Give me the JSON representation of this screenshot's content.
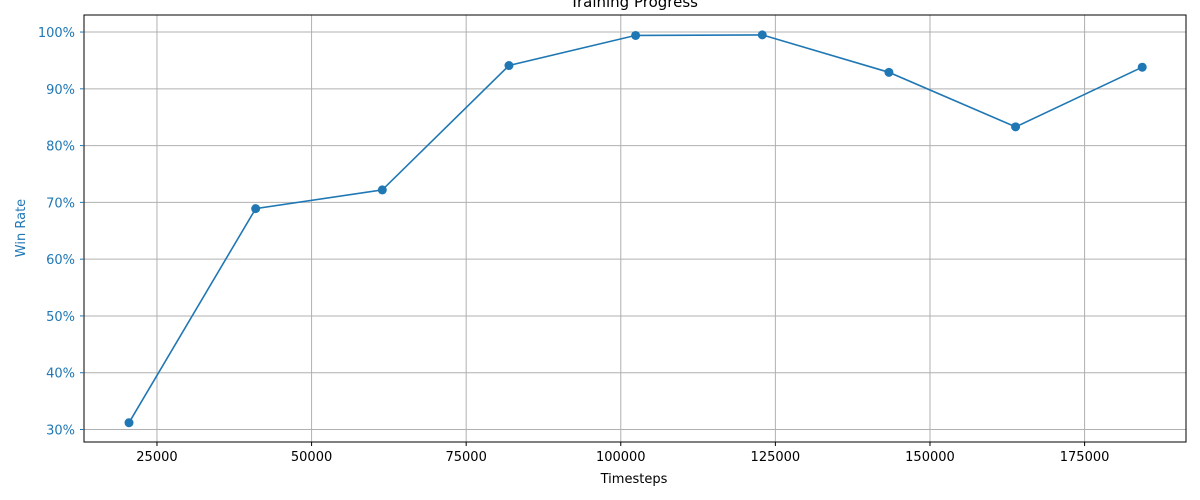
{
  "chart_data": {
    "type": "line",
    "title": "Training Progress",
    "xlabel": "Timesteps",
    "ylabel": "Win Rate",
    "xlim": [
      13200,
      191400
    ],
    "ylim": [
      0.278,
      1.03
    ],
    "xticks": [
      25000,
      50000,
      75000,
      100000,
      125000,
      150000,
      175000
    ],
    "xtick_labels": [
      "25000",
      "50000",
      "75000",
      "100000",
      "125000",
      "150000",
      "175000"
    ],
    "yticks": [
      0.3,
      0.4,
      0.5,
      0.6,
      0.7,
      0.8,
      0.9,
      1.0
    ],
    "ytick_labels": [
      "30%",
      "40%",
      "50%",
      "60%",
      "70%",
      "80%",
      "90%",
      "100%"
    ],
    "grid": true,
    "series": [
      {
        "x": [
          20480,
          40960,
          61440,
          81920,
          102400,
          122880,
          143360,
          163840,
          184320
        ],
        "values": [
          0.312,
          0.689,
          0.722,
          0.941,
          0.994,
          0.995,
          0.929,
          0.833,
          0.938
        ]
      }
    ],
    "colors": {
      "line": "#1f77b4",
      "ylabel": "#1f77b4",
      "grid": "#b0b0b0",
      "axis": "#000000"
    }
  }
}
